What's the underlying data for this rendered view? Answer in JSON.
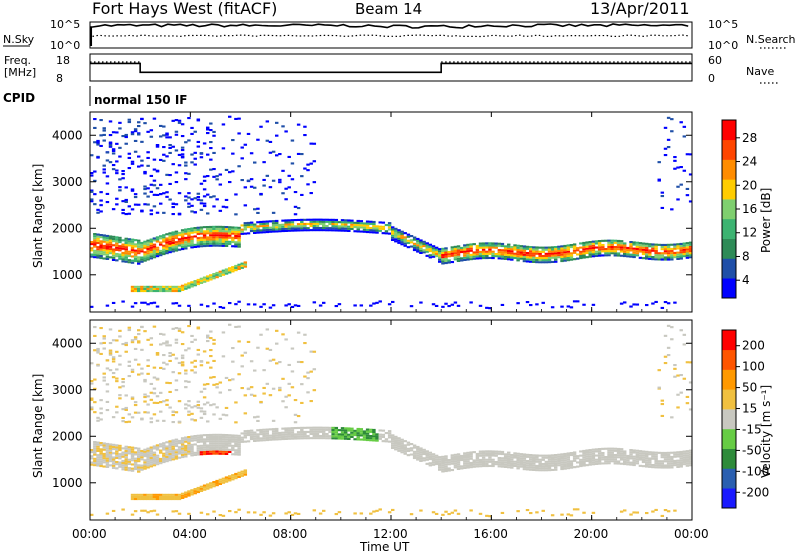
{
  "header": {
    "title": "Fort Hays West (fitACF)",
    "beam": "Beam 14",
    "date": "13/Apr/2011"
  },
  "top_panels": {
    "nsky_label": "N.Sky",
    "nsearch_label": "N.Search",
    "noise_ticks_left": [
      "10^5",
      "10^0"
    ],
    "noise_ticks_right": [
      "10^5",
      "10^0"
    ],
    "freq_label_1": "Freq.",
    "freq_label_2": "[MHz]",
    "freq_ticks": [
      "18",
      "8"
    ],
    "nave_label": "Nave",
    "nave_ticks": [
      "60",
      "0"
    ],
    "cpid_label": "CPID",
    "cpid_text": "normal 150 IF"
  },
  "colors": {
    "power_scale": [
      "#0000ff",
      "#1f4fa8",
      "#2e8b57",
      "#3cb371",
      "#7fcf6f",
      "#ffcc00",
      "#ff8c00",
      "#ff4500",
      "#ff0000"
    ],
    "velocity_scale": [
      "#1a1aff",
      "#2a5fb0",
      "#2e8b3a",
      "#66cc44",
      "#c8c8c0",
      "#f0c040",
      "#ff9900",
      "#ff5500",
      "#ff0000"
    ]
  },
  "chart_data": [
    {
      "type": "heatmap",
      "name": "power",
      "ylabel": "Slant Range [km]",
      "yticks": [
        "4000",
        "3000",
        "2000",
        "1000"
      ],
      "ylim": [
        200,
        4500
      ],
      "xlim_hours": [
        0,
        24
      ],
      "colorbar_label": "Power [dB]",
      "colorbar_ticks": [
        "28",
        "24",
        "20",
        "16",
        "12",
        "8",
        "4"
      ],
      "colorbar_range": [
        0,
        30
      ]
    },
    {
      "type": "heatmap",
      "name": "velocity",
      "ylabel": "Slant Range [km]",
      "yticks": [
        "4000",
        "3000",
        "2000",
        "1000"
      ],
      "ylim": [
        200,
        4500
      ],
      "xlim_hours": [
        0,
        24
      ],
      "colorbar_label": "Velocity [m s⁻¹]",
      "colorbar_ticks": [
        "200",
        "100",
        "50",
        "15",
        "-15",
        "-50",
        "-100",
        "-200"
      ]
    }
  ],
  "x_axis": {
    "ticks": [
      "00:00",
      "04:00",
      "08:00",
      "12:00",
      "16:00",
      "20:00",
      "00:00"
    ],
    "label": "Time UT"
  }
}
